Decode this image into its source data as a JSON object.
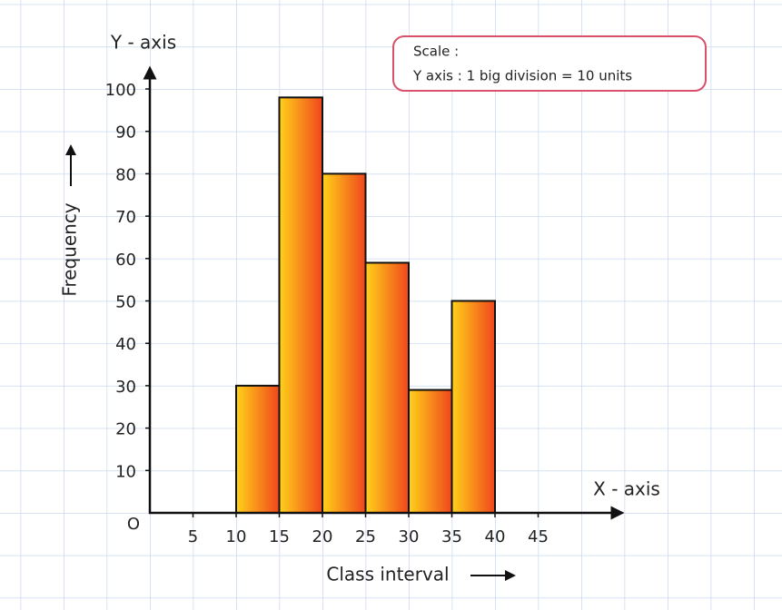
{
  "chart_data": {
    "type": "histogram",
    "y_axis_name": "Y - axis",
    "x_axis_name": "X - axis",
    "y_label": "Frequency",
    "x_label": "Class interval",
    "origin_label": "O",
    "scale_title": "Scale :",
    "scale_text": "Y axis : 1 big division = 10 units",
    "bins": [
      10,
      15,
      20,
      25,
      30,
      35,
      40
    ],
    "values": [
      30,
      98,
      80,
      59,
      29,
      50
    ],
    "color_start": "#ffd21a",
    "color_end": "#f0461c",
    "xlim": [
      0,
      50
    ],
    "xticks": [
      5,
      10,
      15,
      20,
      25,
      30,
      35,
      40,
      45
    ],
    "ylim": [
      0,
      100
    ],
    "yticks": [
      10,
      20,
      30,
      40,
      50,
      60,
      70,
      80,
      90,
      100
    ]
  }
}
